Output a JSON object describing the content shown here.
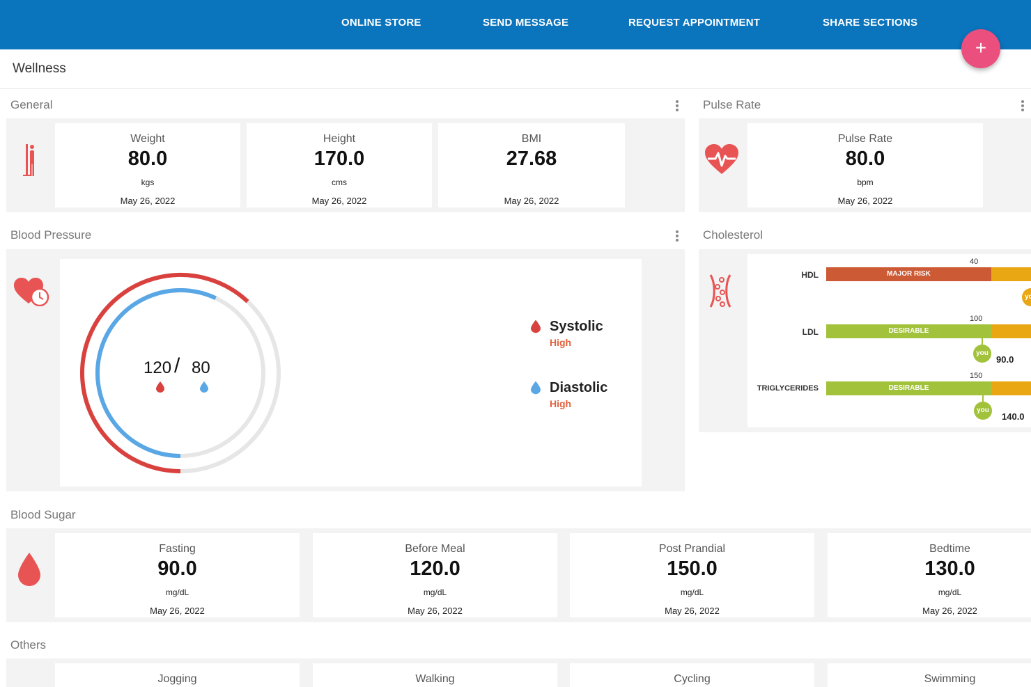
{
  "nav": {
    "items": [
      "ONLINE STORE",
      "SEND MESSAGE",
      "REQUEST APPOINTMENT",
      "SHARE SECTIONS"
    ],
    "fab_label": "+"
  },
  "page": {
    "title": "Wellness"
  },
  "general": {
    "title": "General",
    "icon": "person-height-icon",
    "cards": [
      {
        "label": "Weight",
        "value": "80.0",
        "unit": "kgs",
        "date": "May 26, 2022"
      },
      {
        "label": "Height",
        "value": "170.0",
        "unit": "cms",
        "date": "May 26, 2022"
      },
      {
        "label": "BMI",
        "value": "27.68",
        "unit": "",
        "date": "May 26, 2022"
      }
    ]
  },
  "pulse": {
    "title": "Pulse Rate",
    "icon": "heartbeat-icon",
    "card": {
      "label": "Pulse Rate",
      "value": "80.0",
      "unit": "bpm",
      "date": "May 26, 2022"
    }
  },
  "blood_pressure": {
    "title": "Blood Pressure",
    "icon": "heart-clock-icon",
    "systolic": "120",
    "separator": "/",
    "diastolic": "80",
    "systolic_fraction": 0.62,
    "diastolic_fraction": 0.57,
    "legend": [
      {
        "name": "Systolic",
        "status": "High",
        "color": "#d9413e"
      },
      {
        "name": "Diastolic",
        "status": "High",
        "color": "#5aa7e6"
      }
    ]
  },
  "cholesterol": {
    "title": "Cholesterol",
    "icon": "cholesterol-vessel-icon",
    "rows": [
      {
        "label": "HDL",
        "zone": "MAJOR RISK",
        "zone_color": "#cc5a35",
        "threshold": "40",
        "you": "you",
        "value": ""
      },
      {
        "label": "LDL",
        "zone": "DESIRABLE",
        "zone_color": "#a3c23c",
        "threshold": "100",
        "you": "you",
        "value": "90.0"
      },
      {
        "label": "TRIGLYCERIDES",
        "zone": "DESIRABLE",
        "zone_color": "#a3c23c",
        "threshold": "150",
        "you": "you",
        "value": "140.0"
      }
    ],
    "next_zone_color": "#e9a813"
  },
  "blood_sugar": {
    "title": "Blood Sugar",
    "icon": "blood-drop-icon",
    "cards": [
      {
        "label": "Fasting",
        "value": "90.0",
        "unit": "mg/dL",
        "date": "May 26, 2022"
      },
      {
        "label": "Before Meal",
        "value": "120.0",
        "unit": "mg/dL",
        "date": "May 26, 2022"
      },
      {
        "label": "Post Prandial",
        "value": "150.0",
        "unit": "mg/dL",
        "date": "May 26, 2022"
      },
      {
        "label": "Bedtime",
        "value": "130.0",
        "unit": "mg/dL",
        "date": "May 26, 2022"
      }
    ]
  },
  "others": {
    "title": "Others",
    "cards": [
      {
        "label": "Jogging"
      },
      {
        "label": "Walking"
      },
      {
        "label": "Cycling"
      },
      {
        "label": "Swimming"
      }
    ]
  },
  "colors": {
    "nav": "#0a74bd",
    "fab": "#ea4f7e",
    "icon_red": "#e85454",
    "systolic": "#d9413e",
    "diastolic": "#5aa7e6",
    "track": "#e6e6e6"
  }
}
